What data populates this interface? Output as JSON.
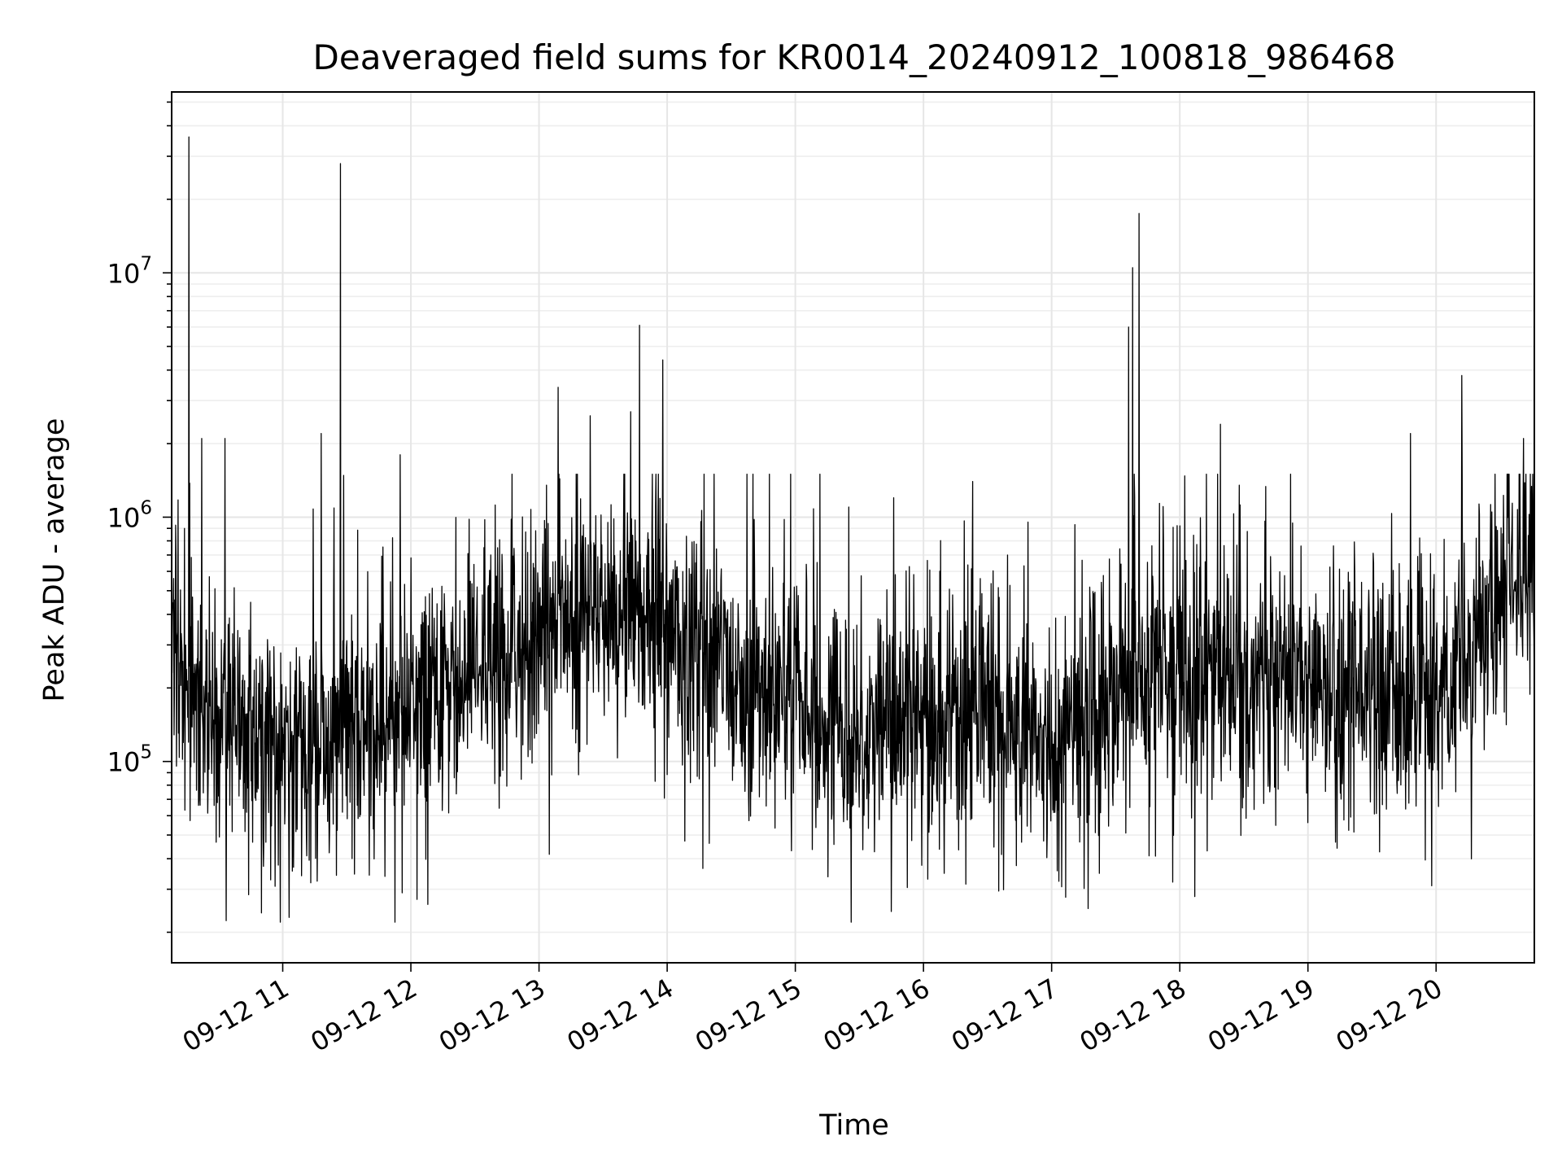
{
  "chart_data": {
    "type": "line",
    "title": "Deaveraged field sums for KR0014_20240912_100818_986468",
    "xlabel": "Time",
    "ylabel": "Peak ADU - average",
    "yscale": "log",
    "grid": true,
    "color": "#000000",
    "xlim": [
      "2024-09-12 10:08",
      "2024-09-12 20:46"
    ],
    "ylim": [
      15000,
      55000000
    ],
    "x_ticks": [
      {
        "value": "2024-09-12 11:00",
        "label": "09-12 11"
      },
      {
        "value": "2024-09-12 12:00",
        "label": "09-12 12"
      },
      {
        "value": "2024-09-12 13:00",
        "label": "09-12 13"
      },
      {
        "value": "2024-09-12 14:00",
        "label": "09-12 14"
      },
      {
        "value": "2024-09-12 15:00",
        "label": "09-12 15"
      },
      {
        "value": "2024-09-12 16:00",
        "label": "09-12 16"
      },
      {
        "value": "2024-09-12 17:00",
        "label": "09-12 17"
      },
      {
        "value": "2024-09-12 18:00",
        "label": "09-12 18"
      },
      {
        "value": "2024-09-12 19:00",
        "label": "09-12 19"
      },
      {
        "value": "2024-09-12 20:00",
        "label": "09-12 20"
      }
    ],
    "y_ticks": [
      {
        "value": 100000,
        "base": "10",
        "exp": "5"
      },
      {
        "value": 1000000,
        "base": "10",
        "exp": "6"
      },
      {
        "value": 10000000,
        "base": "10",
        "exp": "7"
      }
    ],
    "baseline_profile": [
      [
        "2024-09-12 10:08",
        300000
      ],
      [
        "2024-09-12 10:20",
        160000
      ],
      [
        "2024-09-12 10:45",
        130000
      ],
      [
        "2024-09-12 11:15",
        110000
      ],
      [
        "2024-09-12 11:45",
        140000
      ],
      [
        "2024-09-12 12:15",
        170000
      ],
      [
        "2024-09-12 12:40",
        250000
      ],
      [
        "2024-09-12 13:00",
        330000
      ],
      [
        "2024-09-12 13:30",
        420000
      ],
      [
        "2024-09-12 13:55",
        380000
      ],
      [
        "2024-09-12 14:20",
        230000
      ],
      [
        "2024-09-12 15:00",
        170000
      ],
      [
        "2024-09-12 15:30",
        130000
      ],
      [
        "2024-09-12 16:00",
        150000
      ],
      [
        "2024-09-12 16:30",
        170000
      ],
      [
        "2024-09-12 16:55",
        110000
      ],
      [
        "2024-09-12 17:20",
        170000
      ],
      [
        "2024-09-12 17:45",
        220000
      ],
      [
        "2024-09-12 18:15",
        210000
      ],
      [
        "2024-09-12 18:45",
        220000
      ],
      [
        "2024-09-12 19:20",
        200000
      ],
      [
        "2024-09-12 19:50",
        170000
      ],
      [
        "2024-09-12 20:10",
        220000
      ],
      [
        "2024-09-12 20:25",
        380000
      ],
      [
        "2024-09-12 20:46",
        600000
      ]
    ],
    "spikes": [
      [
        "2024-09-12 10:16",
        36000000
      ],
      [
        "2024-09-12 10:22",
        2100000
      ],
      [
        "2024-09-12 10:33",
        2100000
      ],
      [
        "2024-09-12 11:18",
        2200000
      ],
      [
        "2024-09-12 11:27",
        28000000
      ],
      [
        "2024-09-12 11:55",
        1800000
      ],
      [
        "2024-09-12 13:09",
        3400000
      ],
      [
        "2024-09-12 13:24",
        2600000
      ],
      [
        "2024-09-12 13:43",
        2700000
      ],
      [
        "2024-09-12 13:47",
        6100000
      ],
      [
        "2024-09-12 13:58",
        4400000
      ],
      [
        "2024-09-12 15:25",
        1100000
      ],
      [
        "2024-09-12 15:46",
        1200000
      ],
      [
        "2024-09-12 16:23",
        1400000
      ],
      [
        "2024-09-12 17:36",
        6000000
      ],
      [
        "2024-09-12 17:38",
        10500000
      ],
      [
        "2024-09-12 17:41",
        17500000
      ],
      [
        "2024-09-12 18:19",
        2400000
      ],
      [
        "2024-09-12 19:48",
        2200000
      ],
      [
        "2024-09-12 20:12",
        3800000
      ],
      [
        "2024-09-12 20:41",
        2100000
      ]
    ],
    "dips": [
      [
        "2024-09-12 10:50",
        24000
      ],
      [
        "2024-09-12 11:03",
        23000
      ],
      [
        "2024-09-12 11:56",
        29000
      ],
      [
        "2024-09-12 12:08",
        26000
      ],
      [
        "2024-09-12 16:02",
        33000
      ],
      [
        "2024-09-12 17:17",
        25000
      ],
      [
        "2024-09-12 18:07",
        28000
      ],
      [
        "2024-09-12 19:58",
        31000
      ]
    ]
  }
}
